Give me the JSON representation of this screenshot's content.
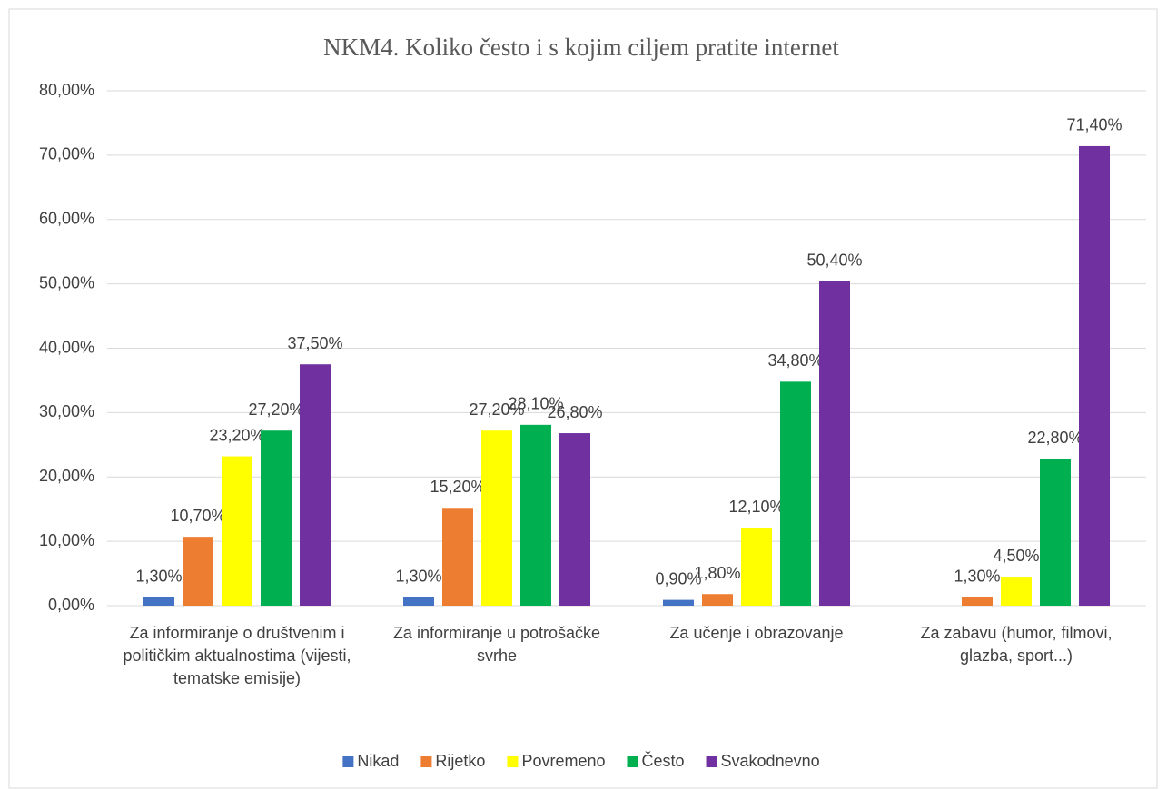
{
  "chart_data": {
    "type": "bar",
    "title": "NKM4. Koliko često i s kojim ciljem pratite internet",
    "categories": [
      "Za informiranje o društvenim i političkim aktualnostima (vijesti, tematske emisije)",
      "Za informiranje u potrošačke svrhe",
      "Za učenje i obrazovanje",
      "Za zabavu (humor, filmovi, glazba, sport...)"
    ],
    "series": [
      {
        "name": "Nikad",
        "color": "#4472c4",
        "values": [
          1.3,
          1.3,
          0.9,
          null
        ],
        "value_labels": [
          "1,30%",
          "1,30%",
          "0,90%",
          null
        ]
      },
      {
        "name": "Rijetko",
        "color": "#ed7d31",
        "values": [
          10.7,
          15.2,
          1.8,
          1.3
        ],
        "value_labels": [
          "10,70%",
          "15,20%",
          "1,80%",
          "1,30%"
        ]
      },
      {
        "name": "Povremeno",
        "color": "#ffff00",
        "values": [
          23.2,
          27.2,
          12.1,
          4.5
        ],
        "value_labels": [
          "23,20%",
          "27,20%",
          "12,10%",
          "4,50%"
        ]
      },
      {
        "name": "Često",
        "color": "#00b050",
        "values": [
          27.2,
          28.1,
          34.8,
          22.8
        ],
        "value_labels": [
          "27,20%",
          "28,10%",
          "34,80%",
          "22,80%"
        ]
      },
      {
        "name": "Svakodnevno",
        "color": "#7030a0",
        "values": [
          37.5,
          26.8,
          50.4,
          71.4
        ],
        "value_labels": [
          "37,50%",
          "26,80%",
          "50,40%",
          "71,40%"
        ]
      }
    ],
    "ylim": [
      0,
      80
    ],
    "yticks": [
      {
        "value": 0,
        "label": "0,00%"
      },
      {
        "value": 10,
        "label": "10,00%"
      },
      {
        "value": 20,
        "label": "20,00%"
      },
      {
        "value": 30,
        "label": "30,00%"
      },
      {
        "value": 40,
        "label": "40,00%"
      },
      {
        "value": 50,
        "label": "50,00%"
      },
      {
        "value": 60,
        "label": "60,00%"
      },
      {
        "value": 70,
        "label": "70,00%"
      },
      {
        "value": 80,
        "label": "80,00%"
      }
    ],
    "grid": true,
    "legend": "bottom"
  }
}
